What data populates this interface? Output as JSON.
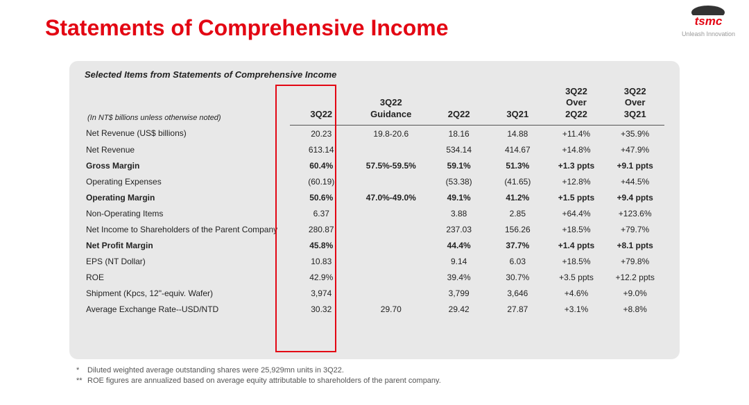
{
  "page": {
    "title": "Statements of Comprehensive Income",
    "logo_text": "tsmc",
    "logo_tagline": "Unleash Innovation"
  },
  "panel": {
    "subtitle": "Selected Items from Statements of Comprehensive Income",
    "units_note": "(In NT$ billions unless otherwise noted)",
    "columns": {
      "q22": "3Q22",
      "guidance_l1": "3Q22",
      "guidance_l2": "Guidance",
      "q2_22": "2Q22",
      "q3_21": "3Q21",
      "over2q_l1": "3Q22",
      "over2q_l2": "Over",
      "over2q_l3": "2Q22",
      "over3q_l1": "3Q22",
      "over3q_l2": "Over",
      "over3q_l3": "3Q21"
    },
    "rows": [
      {
        "bold": false,
        "label": "Net Revenue (US$ billions)",
        "q22": "20.23",
        "guide": "19.8-20.6",
        "q2": "18.16",
        "q3": "14.88",
        "o2": "+11.4%",
        "o3": "+35.9%"
      },
      {
        "bold": false,
        "label": "Net Revenue",
        "q22": "613.14",
        "guide": "",
        "q2": "534.14",
        "q3": "414.67",
        "o2": "+14.8%",
        "o3": "+47.9%"
      },
      {
        "bold": true,
        "label": "Gross Margin",
        "q22": "60.4%",
        "guide": "57.5%-59.5%",
        "q2": "59.1%",
        "q3": "51.3%",
        "o2": "+1.3 ppts",
        "o3": "+9.1 ppts"
      },
      {
        "bold": false,
        "label": "Operating Expenses",
        "q22": "(60.19)",
        "guide": "",
        "q2": "(53.38)",
        "q3": "(41.65)",
        "o2": "+12.8%",
        "o3": "+44.5%"
      },
      {
        "bold": true,
        "label": "Operating Margin",
        "q22": "50.6%",
        "guide": "47.0%-49.0%",
        "q2": "49.1%",
        "q3": "41.2%",
        "o2": "+1.5 ppts",
        "o3": "+9.4 ppts"
      },
      {
        "bold": false,
        "label": "Non-Operating Items",
        "q22": "6.37",
        "guide": "",
        "q2": "3.88",
        "q3": "2.85",
        "o2": "+64.4%",
        "o3": "+123.6%"
      },
      {
        "bold": false,
        "label": "Net Income to Shareholders of the Parent Company",
        "q22": "280.87",
        "guide": "",
        "q2": "237.03",
        "q3": "156.26",
        "o2": "+18.5%",
        "o3": "+79.7%"
      },
      {
        "bold": true,
        "label": "Net Profit Margin",
        "q22": "45.8%",
        "guide": "",
        "q2": "44.4%",
        "q3": "37.7%",
        "o2": "+1.4 ppts",
        "o3": "+8.1 ppts"
      },
      {
        "bold": false,
        "label": "EPS (NT Dollar)",
        "q22": "10.83",
        "guide": "",
        "q2": "9.14",
        "q3": "6.03",
        "o2": "+18.5%",
        "o3": "+79.8%"
      },
      {
        "bold": false,
        "label": "ROE",
        "q22": "42.9%",
        "guide": "",
        "q2": "39.4%",
        "q3": "30.7%",
        "o2": "+3.5 ppts",
        "o3": "+12.2 ppts"
      },
      {
        "bold": false,
        "label": "Shipment (Kpcs, 12\"-equiv. Wafer)",
        "q22": "3,974",
        "guide": "",
        "q2": "3,799",
        "q3": "3,646",
        "o2": "+4.6%",
        "o3": "+9.0%"
      },
      {
        "bold": false,
        "label": "Average Exchange Rate--USD/NTD",
        "q22": "30.32",
        "guide": "29.70",
        "q2": "29.42",
        "q3": "27.87",
        "o2": "+3.1%",
        "o3": "+8.8%"
      }
    ],
    "highlight": {
      "border_color": "#e30613"
    }
  },
  "footnotes": {
    "f1": "Diluted weighted average outstanding shares were 25,929mn units in 3Q22.",
    "f2": "ROE figures are annualized based on average equity attributable to shareholders of the parent company."
  },
  "style": {
    "title_color": "#e30613",
    "panel_bg": "#e8e8e8",
    "text_color": "#222222"
  }
}
